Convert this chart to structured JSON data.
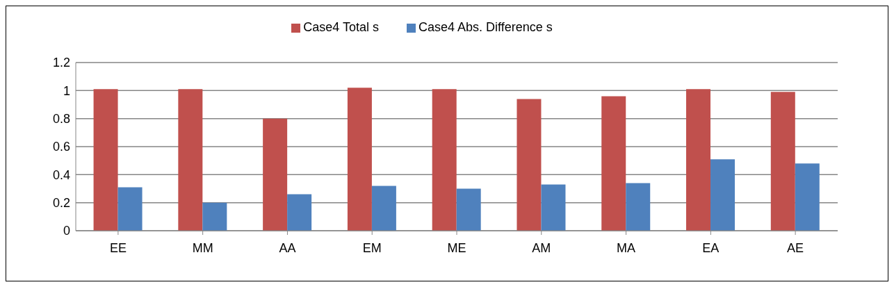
{
  "chart_data": {
    "type": "bar",
    "categories": [
      "EE",
      "MM",
      "AA",
      "EM",
      "ME",
      "AM",
      "MA",
      "EA",
      "AE"
    ],
    "series": [
      {
        "name": "Case4 Total s",
        "color": "#c0504d",
        "values": [
          1.01,
          1.01,
          0.8,
          1.02,
          1.01,
          0.94,
          0.96,
          1.01,
          0.99
        ]
      },
      {
        "name": "Case4 Abs. Difference s",
        "color": "#4f81bd",
        "values": [
          0.31,
          0.2,
          0.26,
          0.32,
          0.3,
          0.33,
          0.34,
          0.51,
          0.48
        ]
      }
    ],
    "ylim": [
      0,
      1.2
    ],
    "yticks": [
      0,
      0.2,
      0.4,
      0.6,
      0.8,
      1,
      1.2
    ],
    "grid": "y",
    "legend": "top"
  }
}
